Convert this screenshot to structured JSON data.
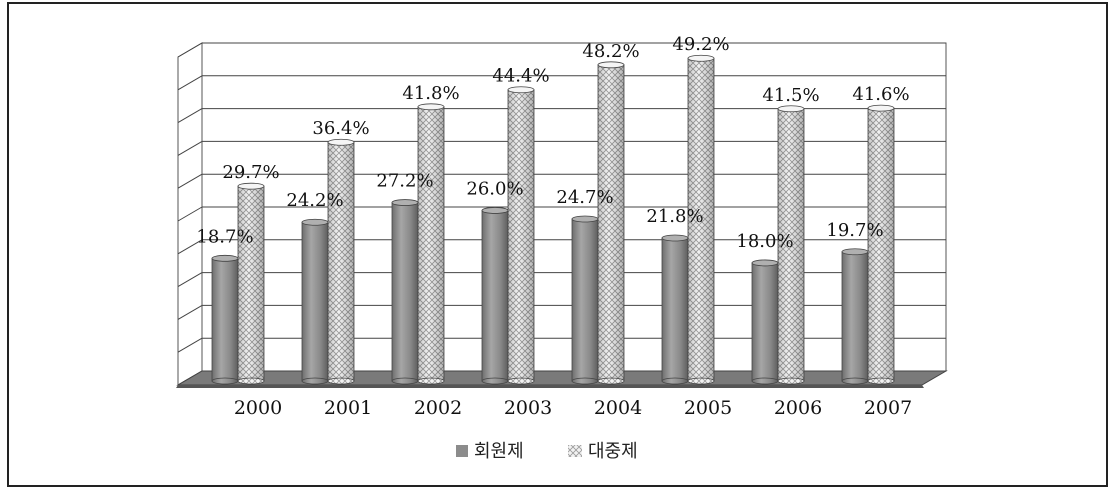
{
  "chart_data": {
    "type": "bar",
    "categories": [
      "2000",
      "2001",
      "2002",
      "2003",
      "2004",
      "2005",
      "2006",
      "2007"
    ],
    "series": [
      {
        "name": "회원제",
        "values": [
          18.7,
          24.2,
          27.2,
          26.0,
          24.7,
          21.8,
          18.0,
          19.7
        ],
        "labels": [
          "18.7%",
          "24.2%",
          "27.2%",
          "26.0%",
          "24.7%",
          "21.8%",
          "18.0%",
          "19.7%"
        ]
      },
      {
        "name": "대중제",
        "values": [
          29.7,
          36.4,
          41.8,
          44.4,
          48.2,
          49.2,
          41.5,
          41.6
        ],
        "labels": [
          "29.7%",
          "36.4%",
          "41.8%",
          "44.4%",
          "48.2%",
          "49.2%",
          "41.5%",
          "41.6%"
        ]
      }
    ],
    "ylim": [
      0,
      50
    ],
    "grid": true,
    "legend_position": "bottom",
    "colors": {
      "series1": "#8c8c8c",
      "series2": "#e6e6e6",
      "floor": "#7a7a7a"
    }
  }
}
